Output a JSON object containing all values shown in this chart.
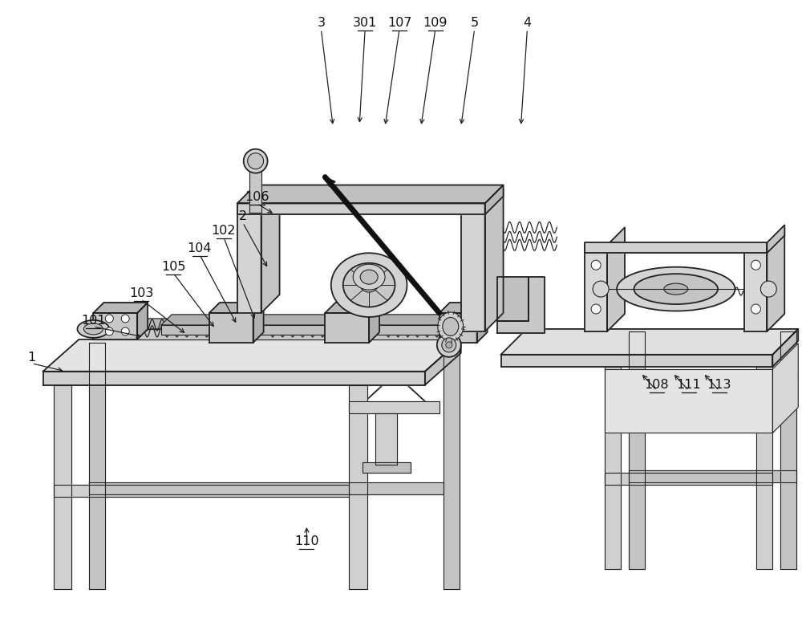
{
  "bg_color": "#ffffff",
  "line_color": "#222222",
  "label_color": "#111111",
  "fig_width": 10.0,
  "fig_height": 7.75,
  "dpi": 100
}
